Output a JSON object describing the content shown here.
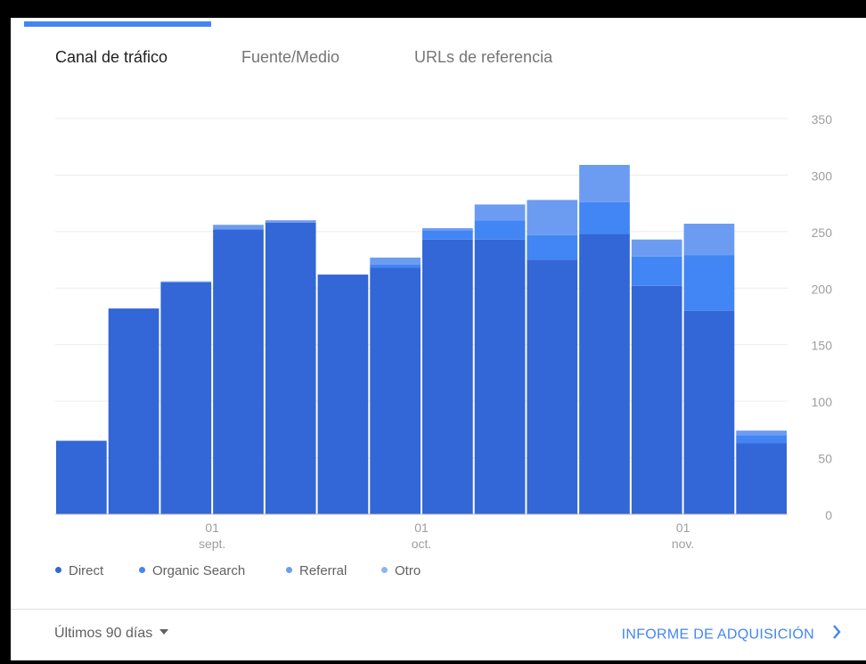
{
  "tabs": [
    {
      "label": "Canal de tráfico",
      "active": true
    },
    {
      "label": "Fuente/Medio",
      "active": false
    },
    {
      "label": "URLs de referencia",
      "active": false
    }
  ],
  "colors": {
    "accent": "#4285f4",
    "direct": "#3366d6",
    "organic_search": "#4285f4",
    "referral": "#6c9cf2",
    "otro": "#8fb4f5"
  },
  "chart_data": {
    "type": "bar",
    "stacked": true,
    "yticks": [
      "350",
      "300",
      "250",
      "200",
      "150",
      "100",
      "50",
      "0"
    ],
    "ylim": [
      0,
      350
    ],
    "xtick_labels": [
      {
        "day": "01",
        "month": "sept.",
        "after_bar": 3
      },
      {
        "day": "01",
        "month": "oct.",
        "after_bar": 7
      },
      {
        "day": "01",
        "month": "nov.",
        "after_bar": 12
      }
    ],
    "series": [
      {
        "name": "Direct",
        "values": [
          65,
          182,
          205,
          252,
          258,
          212,
          218,
          243,
          243,
          225,
          248,
          202,
          180,
          63
        ]
      },
      {
        "name": "Organic Search",
        "values": [
          0,
          0,
          0,
          0,
          0,
          0,
          3,
          8,
          17,
          22,
          28,
          26,
          49,
          7
        ]
      },
      {
        "name": "Referral",
        "values": [
          0,
          0,
          1,
          4,
          2,
          0,
          6,
          2,
          14,
          31,
          33,
          15,
          28,
          4
        ]
      },
      {
        "name": "Otro",
        "values": [
          0,
          0,
          0,
          0,
          0,
          0,
          0,
          0,
          0,
          0,
          0,
          0,
          0,
          0
        ]
      }
    ],
    "grid": true,
    "legend_position": "bottom-left"
  },
  "footer": {
    "period_label": "Últimos 90 días",
    "report_link_label": "INFORME DE ADQUISICIÓN"
  }
}
